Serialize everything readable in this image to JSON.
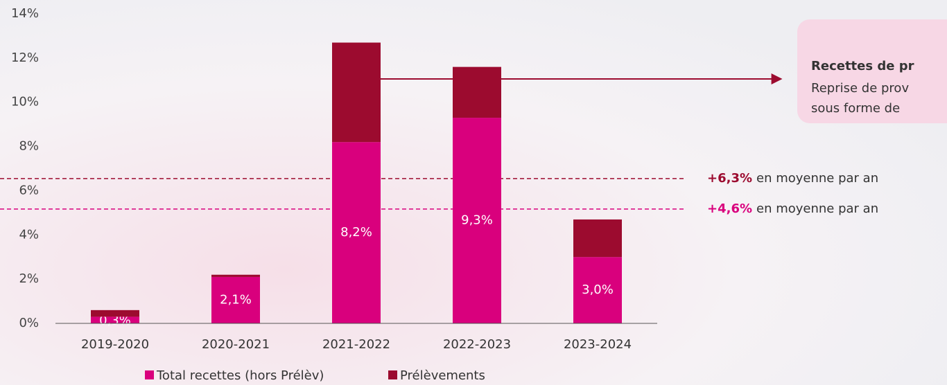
{
  "chart_data": {
    "type": "bar",
    "stacked": true,
    "categories": [
      "2019-2020",
      "2020-2021",
      "2021-2022",
      "2022-2023",
      "2023-2024"
    ],
    "series": [
      {
        "name": "Total recettes (hors Prélèv)",
        "color": "#d9007d",
        "values": [
          0.3,
          2.1,
          8.2,
          9.3,
          3.0
        ],
        "value_labels": [
          "0,3%",
          "2,1%",
          "8,2%",
          "9,3%",
          "3,0%"
        ]
      },
      {
        "name": "Prélèvements",
        "color": "#9c0b2f",
        "values": [
          0.3,
          0.1,
          4.5,
          2.3,
          1.7
        ]
      }
    ],
    "ylim": [
      0,
      14
    ],
    "yticks": [
      {
        "value": 0,
        "label": "0%"
      },
      {
        "value": 2,
        "label": "2%"
      },
      {
        "value": 4,
        "label": "4%"
      },
      {
        "value": 6,
        "label": "6%"
      },
      {
        "value": 8,
        "label": "8%"
      },
      {
        "value": 10,
        "label": "10%"
      },
      {
        "value": 12,
        "label": "12%"
      },
      {
        "value": 14,
        "label": "14%"
      }
    ],
    "reference_lines": [
      {
        "value": 6.55,
        "color": "#9c0b2f",
        "label": "+6,3%",
        "text": "en moyenne par an"
      },
      {
        "value": 5.17,
        "color": "#d9007d",
        "label": "+4,6%",
        "text": "en moyenne par an"
      }
    ],
    "callout": {
      "title": "Recettes de pr",
      "lines": [
        "Reprise de prov",
        "sous forme de"
      ]
    }
  }
}
